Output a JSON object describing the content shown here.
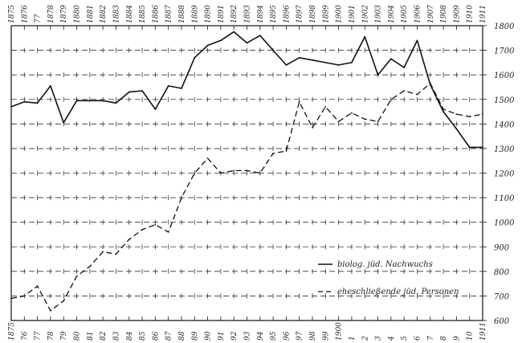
{
  "chart_data": {
    "type": "line",
    "x": [
      1875,
      1876,
      1877,
      1878,
      1879,
      1880,
      1881,
      1882,
      1883,
      1884,
      1885,
      1886,
      1887,
      1888,
      1889,
      1890,
      1891,
      1892,
      1893,
      1894,
      1895,
      1896,
      1897,
      1898,
      1899,
      1900,
      1901,
      1902,
      1903,
      1904,
      1905,
      1906,
      1907,
      1908,
      1909,
      1910,
      1911
    ],
    "x_labels_top": [
      "1875",
      "1876",
      "77",
      "1878",
      "1879",
      "1880",
      "1881",
      "1882",
      "1883",
      "1884",
      "1885",
      "1886",
      "1887",
      "1888",
      "1889",
      "1890",
      "1891",
      "1892",
      "1893",
      "1894",
      "1895",
      "1896",
      "1897",
      "1898",
      "1899",
      "1900",
      "1901",
      "1902",
      "1903",
      "1904",
      "1905",
      "1906",
      "1907",
      "1908",
      "1909",
      "1910",
      "1911"
    ],
    "x_labels_bottom": [
      "1875",
      "76",
      "77",
      "78",
      "79",
      "80",
      "81",
      "82",
      "83",
      "84",
      "85",
      "86",
      "87",
      "88",
      "89",
      "90",
      "91",
      "92",
      "93",
      "94",
      "95",
      "96",
      "97",
      "98",
      "99",
      "1900",
      "1",
      "2",
      "3",
      "4",
      "5",
      "6",
      "7",
      "8",
      "9",
      "10",
      "1911"
    ],
    "ylim": [
      600,
      1800
    ],
    "yticks": [
      600,
      700,
      800,
      900,
      1000,
      1100,
      1200,
      1300,
      1400,
      1500,
      1600,
      1700,
      1800
    ],
    "series": [
      {
        "name": "biolog. jüd. Nachwuchs",
        "style": "solid",
        "values": [
          1470,
          1490,
          1485,
          1555,
          1405,
          1495,
          1495,
          1495,
          1485,
          1530,
          1535,
          1460,
          1555,
          1545,
          1670,
          1720,
          1740,
          1775,
          1730,
          1760,
          1700,
          1640,
          1670,
          1660,
          1650,
          1640,
          1650,
          1755,
          1600,
          1665,
          1630,
          1740,
          1560,
          1450,
          1380,
          1305,
          1305
        ]
      },
      {
        "name": "eheschließende jüd. Personen",
        "style": "dashed",
        "values": [
          690,
          700,
          740,
          640,
          680,
          780,
          820,
          880,
          870,
          930,
          970,
          990,
          960,
          1100,
          1200,
          1260,
          1200,
          1210,
          1210,
          1200,
          1280,
          1290,
          1490,
          1385,
          1470,
          1410,
          1445,
          1420,
          1410,
          1500,
          1535,
          1520,
          1565,
          1460,
          1440,
          1430,
          1440
        ]
      }
    ],
    "grid": true,
    "legend": "bottom-right"
  }
}
